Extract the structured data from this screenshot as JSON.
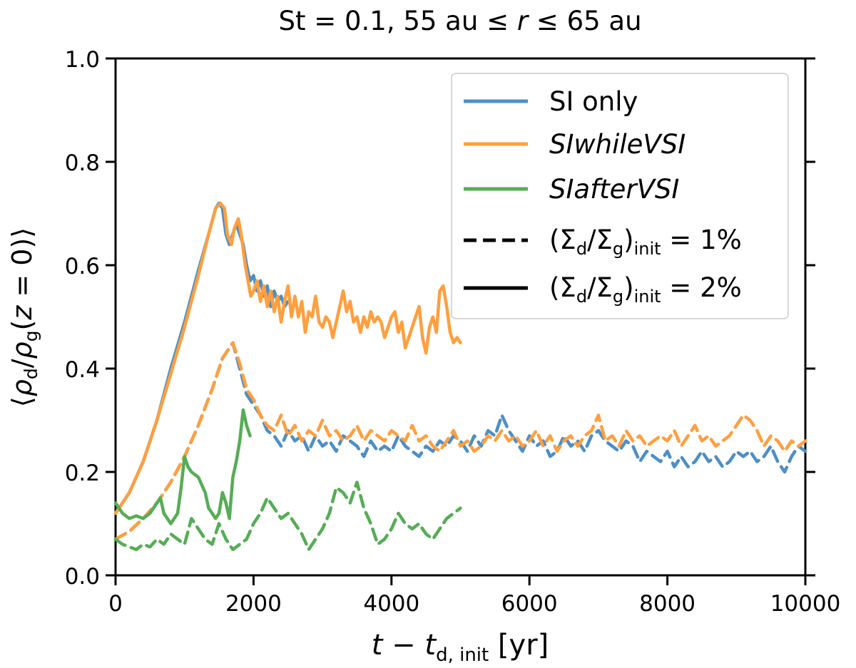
{
  "chart_data": {
    "type": "line",
    "title": "St = 0.1, 55 au ≤ r ≤ 65 au",
    "title_parts": {
      "lead": "St = 0.1, 55 au ≤ ",
      "var": "r",
      "tail": " ≤ 65 au"
    },
    "xlabel": "t − t_d,init [yr]",
    "xlabel_parts": {
      "t": "t",
      "minus": " − ",
      "td": "t",
      "td_sub": "d, init",
      "unit": " [yr]"
    },
    "ylabel": "⟨ρ_d/ρ_g(z = 0)⟩",
    "ylabel_parts": {
      "open": "⟨",
      "rho1": "ρ",
      "sub1": "d",
      "slash": "/",
      "rho2": "ρ",
      "sub2": "g",
      "paren": "(",
      "z": "z",
      "eq": " = 0)",
      "close": "⟩"
    },
    "xlim": [
      0,
      10000
    ],
    "ylim": [
      0.0,
      1.0
    ],
    "xticks": [
      0,
      2000,
      4000,
      6000,
      8000,
      10000
    ],
    "xtick_labels": [
      "0",
      "2000",
      "4000",
      "6000",
      "8000",
      "10000"
    ],
    "yticks": [
      0.0,
      0.2,
      0.4,
      0.6,
      0.8,
      1.0
    ],
    "ytick_labels": [
      "0.0",
      "0.2",
      "0.4",
      "0.6",
      "0.8",
      "1.0"
    ],
    "colors": {
      "blue": "#4e8fc4",
      "orange": "#ff9f3f",
      "green": "#55ad55"
    },
    "legend": {
      "position": "top-right",
      "entries": [
        {
          "label": "SI only",
          "italic": false,
          "color": "#4e8fc4",
          "style": "solid"
        },
        {
          "label": "SIwhileVSI",
          "italic": true,
          "color": "#ff9f3f",
          "style": "solid"
        },
        {
          "label": "SIafterVSI",
          "italic": true,
          "color": "#55ad55",
          "style": "solid"
        },
        {
          "label": "(Σd/Σg)init = 1%",
          "parts": {
            "open": "(Σ",
            "s1": "d",
            "mid": "/Σ",
            "s2": "g",
            "close": ")",
            "s3": "init",
            "val": " = 1%"
          },
          "color": "#000000",
          "style": "dashed"
        },
        {
          "label": "(Σd/Σg)init = 2%",
          "parts": {
            "open": "(Σ",
            "s1": "d",
            "mid": "/Σ",
            "s2": "g",
            "close": ")",
            "s3": "init",
            "val": " = 2%"
          },
          "color": "#000000",
          "style": "solid"
        }
      ]
    },
    "series": [
      {
        "name": "SI only, 2%",
        "color": "#4e8fc4",
        "style": "solid",
        "x": [
          0,
          200,
          400,
          600,
          800,
          1000,
          1200,
          1350,
          1450,
          1500,
          1550,
          1600,
          1650,
          1700,
          1750,
          1800,
          1850,
          1900,
          1950,
          2000,
          2050,
          2100,
          2150,
          2200,
          2250,
          2300,
          2350,
          2400,
          2450,
          2500
        ],
        "y": [
          0.12,
          0.16,
          0.22,
          0.3,
          0.4,
          0.49,
          0.59,
          0.66,
          0.71,
          0.72,
          0.71,
          0.66,
          0.64,
          0.66,
          0.68,
          0.66,
          0.64,
          0.6,
          0.57,
          0.58,
          0.55,
          0.57,
          0.54,
          0.56,
          0.52,
          0.55,
          0.53,
          0.54,
          0.52,
          0.53
        ]
      },
      {
        "name": "SIwhileVSI, 2%",
        "color": "#ff9f3f",
        "style": "solid",
        "x": [
          0,
          200,
          400,
          600,
          800,
          1000,
          1200,
          1350,
          1450,
          1520,
          1580,
          1620,
          1680,
          1720,
          1780,
          1820,
          1880,
          1920,
          1960,
          2000,
          2050,
          2100,
          2150,
          2200,
          2250,
          2300,
          2350,
          2400,
          2450,
          2500,
          2550,
          2600,
          2650,
          2700,
          2750,
          2800,
          2850,
          2900,
          2950,
          3000,
          3050,
          3100,
          3150,
          3200,
          3250,
          3300,
          3350,
          3400,
          3450,
          3500,
          3550,
          3600,
          3650,
          3700,
          3750,
          3800,
          3850,
          3900,
          3950,
          4000,
          4050,
          4100,
          4150,
          4200,
          4250,
          4300,
          4350,
          4400,
          4450,
          4500,
          4550,
          4600,
          4650,
          4700,
          4750,
          4800,
          4850,
          4900,
          4950,
          5000
        ],
        "y": [
          0.12,
          0.16,
          0.22,
          0.3,
          0.39,
          0.48,
          0.58,
          0.66,
          0.71,
          0.72,
          0.71,
          0.66,
          0.64,
          0.67,
          0.69,
          0.66,
          0.6,
          0.57,
          0.54,
          0.55,
          0.57,
          0.53,
          0.56,
          0.52,
          0.55,
          0.51,
          0.54,
          0.49,
          0.53,
          0.56,
          0.5,
          0.54,
          0.5,
          0.53,
          0.47,
          0.51,
          0.5,
          0.54,
          0.49,
          0.48,
          0.5,
          0.49,
          0.46,
          0.49,
          0.52,
          0.55,
          0.51,
          0.53,
          0.49,
          0.5,
          0.47,
          0.5,
          0.48,
          0.51,
          0.49,
          0.5,
          0.49,
          0.46,
          0.48,
          0.5,
          0.51,
          0.47,
          0.49,
          0.44,
          0.46,
          0.48,
          0.5,
          0.52,
          0.46,
          0.43,
          0.48,
          0.5,
          0.47,
          0.55,
          0.56,
          0.52,
          0.47,
          0.45,
          0.46,
          0.45
        ]
      },
      {
        "name": "SI only, 1%",
        "color": "#4e8fc4",
        "style": "dashed",
        "x": [
          0,
          200,
          400,
          600,
          800,
          1000,
          1200,
          1400,
          1550,
          1700,
          1800,
          1900,
          2000,
          2100,
          2200,
          2300,
          2400,
          2500,
          2600,
          2700,
          2800,
          2900,
          3000,
          3100,
          3200,
          3300,
          3400,
          3500,
          3600,
          3700,
          3800,
          3900,
          4000,
          4100,
          4200,
          4300,
          4400,
          4500,
          4600,
          4700,
          4800,
          4900,
          5000,
          5100,
          5200,
          5300,
          5400,
          5500,
          5600,
          5700,
          5800,
          5900,
          6000,
          6100,
          6200,
          6300,
          6400,
          6500,
          6600,
          6700,
          6800,
          6900,
          7000,
          7100,
          7200,
          7300,
          7400,
          7500,
          7600,
          7700,
          7800,
          7900,
          8000,
          8100,
          8200,
          8300,
          8400,
          8500,
          8600,
          8700,
          8800,
          8900,
          9000,
          9100,
          9200,
          9300,
          9400,
          9500,
          9600,
          9700,
          9800,
          9900,
          10000
        ],
        "y": [
          0.07,
          0.085,
          0.11,
          0.14,
          0.18,
          0.23,
          0.29,
          0.36,
          0.42,
          0.45,
          0.4,
          0.35,
          0.33,
          0.31,
          0.28,
          0.27,
          0.25,
          0.28,
          0.26,
          0.27,
          0.24,
          0.27,
          0.25,
          0.26,
          0.24,
          0.27,
          0.26,
          0.25,
          0.23,
          0.26,
          0.24,
          0.25,
          0.24,
          0.27,
          0.25,
          0.24,
          0.23,
          0.25,
          0.24,
          0.26,
          0.25,
          0.27,
          0.26,
          0.24,
          0.27,
          0.25,
          0.28,
          0.27,
          0.31,
          0.28,
          0.26,
          0.24,
          0.27,
          0.25,
          0.26,
          0.23,
          0.24,
          0.27,
          0.25,
          0.26,
          0.24,
          0.27,
          0.28,
          0.26,
          0.25,
          0.24,
          0.26,
          0.25,
          0.22,
          0.24,
          0.23,
          0.22,
          0.24,
          0.21,
          0.23,
          0.21,
          0.22,
          0.24,
          0.22,
          0.23,
          0.21,
          0.22,
          0.24,
          0.23,
          0.24,
          0.22,
          0.23,
          0.25,
          0.22,
          0.2,
          0.23,
          0.25,
          0.24
        ]
      },
      {
        "name": "SIwhileVSI, 1%",
        "color": "#ff9f3f",
        "style": "dashed",
        "x": [
          0,
          200,
          400,
          600,
          800,
          1000,
          1200,
          1400,
          1550,
          1700,
          1800,
          1900,
          2000,
          2100,
          2200,
          2300,
          2400,
          2500,
          2600,
          2700,
          2800,
          2900,
          3000,
          3100,
          3200,
          3300,
          3400,
          3500,
          3600,
          3700,
          3800,
          3900,
          4000,
          4100,
          4200,
          4300,
          4400,
          4500,
          4600,
          4700,
          4800,
          4900,
          5000,
          5100,
          5200,
          5300,
          5400,
          5500,
          5600,
          5700,
          5800,
          5900,
          6000,
          6100,
          6200,
          6300,
          6400,
          6500,
          6600,
          6700,
          6800,
          6900,
          7000,
          7100,
          7200,
          7300,
          7400,
          7500,
          7600,
          7700,
          7800,
          7900,
          8000,
          8100,
          8200,
          8300,
          8400,
          8500,
          8600,
          8700,
          8800,
          8900,
          9000,
          9100,
          9200,
          9300,
          9400,
          9500,
          9600,
          9700,
          9800,
          9900,
          10000
        ],
        "y": [
          0.07,
          0.085,
          0.11,
          0.14,
          0.18,
          0.23,
          0.29,
          0.36,
          0.42,
          0.45,
          0.41,
          0.36,
          0.34,
          0.31,
          0.29,
          0.28,
          0.31,
          0.27,
          0.29,
          0.26,
          0.28,
          0.27,
          0.3,
          0.27,
          0.28,
          0.26,
          0.27,
          0.29,
          0.26,
          0.28,
          0.27,
          0.26,
          0.28,
          0.27,
          0.26,
          0.29,
          0.26,
          0.27,
          0.25,
          0.24,
          0.26,
          0.28,
          0.25,
          0.26,
          0.24,
          0.25,
          0.27,
          0.26,
          0.28,
          0.26,
          0.27,
          0.25,
          0.26,
          0.28,
          0.25,
          0.27,
          0.24,
          0.26,
          0.27,
          0.25,
          0.27,
          0.28,
          0.31,
          0.26,
          0.27,
          0.25,
          0.28,
          0.26,
          0.27,
          0.25,
          0.26,
          0.27,
          0.26,
          0.28,
          0.25,
          0.27,
          0.29,
          0.26,
          0.27,
          0.25,
          0.26,
          0.27,
          0.29,
          0.31,
          0.3,
          0.28,
          0.25,
          0.27,
          0.26,
          0.24,
          0.26,
          0.25,
          0.26
        ]
      },
      {
        "name": "SIafterVSI, 2%",
        "color": "#55ad55",
        "style": "solid",
        "x": [
          0,
          100,
          200,
          300,
          400,
          500,
          600,
          650,
          700,
          800,
          900,
          950,
          1000,
          1050,
          1100,
          1200,
          1300,
          1350,
          1400,
          1450,
          1500,
          1550,
          1600,
          1650,
          1700,
          1750,
          1800,
          1850,
          1900,
          1950
        ],
        "y": [
          0.14,
          0.12,
          0.11,
          0.115,
          0.11,
          0.12,
          0.14,
          0.15,
          0.12,
          0.1,
          0.12,
          0.17,
          0.23,
          0.21,
          0.2,
          0.19,
          0.16,
          0.13,
          0.12,
          0.11,
          0.12,
          0.16,
          0.14,
          0.11,
          0.19,
          0.22,
          0.26,
          0.32,
          0.29,
          0.27
        ]
      },
      {
        "name": "SIafterVSI, 1%",
        "color": "#55ad55",
        "style": "dashed",
        "x": [
          0,
          100,
          200,
          300,
          400,
          500,
          600,
          700,
          800,
          900,
          1000,
          1100,
          1200,
          1300,
          1400,
          1500,
          1600,
          1700,
          1800,
          1900,
          2000,
          2100,
          2200,
          2300,
          2400,
          2500,
          2600,
          2700,
          2800,
          2900,
          3000,
          3100,
          3200,
          3300,
          3400,
          3500,
          3600,
          3700,
          3800,
          3900,
          4000,
          4100,
          4200,
          4300,
          4400,
          4500,
          4600,
          4700,
          4800,
          4900,
          5000
        ],
        "y": [
          0.07,
          0.06,
          0.055,
          0.05,
          0.06,
          0.055,
          0.07,
          0.06,
          0.08,
          0.07,
          0.06,
          0.11,
          0.09,
          0.07,
          0.06,
          0.1,
          0.07,
          0.05,
          0.06,
          0.07,
          0.1,
          0.12,
          0.15,
          0.13,
          0.11,
          0.12,
          0.1,
          0.08,
          0.05,
          0.07,
          0.09,
          0.12,
          0.17,
          0.16,
          0.14,
          0.18,
          0.13,
          0.1,
          0.06,
          0.07,
          0.09,
          0.12,
          0.1,
          0.09,
          0.1,
          0.08,
          0.07,
          0.09,
          0.11,
          0.12,
          0.13
        ]
      }
    ]
  }
}
